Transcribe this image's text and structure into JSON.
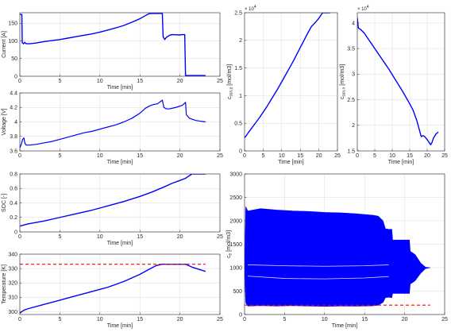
{
  "figure": {
    "background": "#ffffff",
    "line_color": "#0000ff",
    "ref_color": "#ff0000"
  },
  "chart_data": [
    {
      "id": "current",
      "type": "line",
      "xlabel": "Time [min]",
      "ylabel": "Current [A]",
      "xlim": [
        0,
        25
      ],
      "ylim": [
        0,
        180
      ],
      "xticks": [
        0,
        5,
        10,
        15,
        20,
        25
      ],
      "yticks": [
        0,
        50,
        100,
        150
      ],
      "grid": true,
      "series": [
        {
          "color": "#0000ff",
          "width": 1.4,
          "points": [
            [
              0,
              175
            ],
            [
              0.15,
              175
            ],
            [
              0.25,
              175
            ],
            [
              0.3,
              95
            ],
            [
              0.45,
              92
            ],
            [
              0.6,
              96
            ],
            [
              0.8,
              92
            ],
            [
              1.2,
              92
            ],
            [
              2,
              94
            ],
            [
              3,
              98
            ],
            [
              4,
              101
            ],
            [
              5,
              104
            ],
            [
              6,
              108
            ],
            [
              7,
              112
            ],
            [
              8,
              116
            ],
            [
              9,
              120
            ],
            [
              10,
              125
            ],
            [
              11,
              131
            ],
            [
              12,
              137
            ],
            [
              13,
              144
            ],
            [
              14,
              153
            ],
            [
              15,
              163
            ],
            [
              15.7,
              172
            ],
            [
              16.1,
              177
            ],
            [
              16.5,
              178
            ],
            [
              17.6,
              178
            ],
            [
              17.8,
              178
            ],
            [
              17.9,
              112
            ],
            [
              18.1,
              104
            ],
            [
              18.3,
              110
            ],
            [
              18.7,
              116
            ],
            [
              19,
              118
            ],
            [
              20,
              117
            ],
            [
              20.3,
              118
            ],
            [
              20.6,
              118
            ],
            [
              20.7,
              2
            ],
            [
              23.2,
              2
            ]
          ]
        }
      ]
    },
    {
      "id": "voltage",
      "type": "line",
      "xlabel": "Time [min]",
      "ylabel": "Voltage [V]",
      "xlim": [
        0,
        25
      ],
      "ylim": [
        3.6,
        4.4
      ],
      "xticks": [
        0,
        5,
        10,
        15,
        20,
        25
      ],
      "yticks": [
        3.6,
        3.8,
        4.0,
        4.2,
        4.4
      ],
      "grid": true,
      "series": [
        {
          "color": "#0000ff",
          "width": 1.2,
          "points": [
            [
              0,
              3.64
            ],
            [
              0.2,
              3.7
            ],
            [
              0.35,
              3.76
            ],
            [
              0.5,
              3.78
            ],
            [
              0.65,
              3.7
            ],
            [
              0.8,
              3.68
            ],
            [
              1.2,
              3.68
            ],
            [
              2,
              3.69
            ],
            [
              3,
              3.71
            ],
            [
              4,
              3.73
            ],
            [
              5,
              3.76
            ],
            [
              6,
              3.79
            ],
            [
              7,
              3.82
            ],
            [
              8,
              3.85
            ],
            [
              9,
              3.87
            ],
            [
              10,
              3.9
            ],
            [
              11,
              3.93
            ],
            [
              12,
              3.96
            ],
            [
              13,
              4.0
            ],
            [
              14,
              4.05
            ],
            [
              15,
              4.12
            ],
            [
              15.7,
              4.19
            ],
            [
              16.2,
              4.22
            ],
            [
              16.7,
              4.24
            ],
            [
              17.2,
              4.25
            ],
            [
              17.8,
              4.3
            ],
            [
              18.0,
              4.2
            ],
            [
              18.3,
              4.18
            ],
            [
              18.7,
              4.18
            ],
            [
              19.5,
              4.2
            ],
            [
              20.3,
              4.23
            ],
            [
              20.7,
              4.27
            ],
            [
              20.8,
              4.1
            ],
            [
              21.2,
              4.05
            ],
            [
              22,
              4.02
            ],
            [
              23.2,
              4.0
            ]
          ]
        }
      ]
    },
    {
      "id": "soc",
      "type": "line",
      "xlabel": "Time [min]",
      "ylabel": "SOC [-]",
      "xlim": [
        0,
        25
      ],
      "ylim": [
        0,
        0.8
      ],
      "xticks": [
        0,
        5,
        10,
        15,
        20,
        25
      ],
      "yticks": [
        0,
        0.2,
        0.4,
        0.6,
        0.8
      ],
      "grid": true,
      "series": [
        {
          "color": "#0000ff",
          "width": 1.4,
          "points": [
            [
              0,
              0.08
            ],
            [
              1,
              0.11
            ],
            [
              3,
              0.15
            ],
            [
              5,
              0.2
            ],
            [
              7,
              0.25
            ],
            [
              9,
              0.3
            ],
            [
              11,
              0.36
            ],
            [
              13,
              0.42
            ],
            [
              15,
              0.49
            ],
            [
              16.5,
              0.55
            ],
            [
              18,
              0.62
            ],
            [
              19,
              0.67
            ],
            [
              20,
              0.71
            ],
            [
              20.7,
              0.74
            ],
            [
              21.5,
              0.8
            ],
            [
              23.2,
              0.8
            ]
          ]
        }
      ]
    },
    {
      "id": "temperature",
      "type": "line",
      "xlabel": "Time [min]",
      "ylabel": "Temperature [K]",
      "xlim": [
        0,
        25
      ],
      "ylim": [
        298,
        340
      ],
      "xticks": [
        0,
        5,
        10,
        15,
        20,
        25
      ],
      "yticks": [
        300,
        310,
        320,
        330,
        340
      ],
      "grid": true,
      "series": [
        {
          "color": "#0000ff",
          "width": 1.4,
          "points": [
            [
              0,
              299
            ],
            [
              0.5,
              301
            ],
            [
              1,
              302
            ],
            [
              3,
              305
            ],
            [
              5,
              308
            ],
            [
              7,
              311
            ],
            [
              9,
              314
            ],
            [
              11,
              317
            ],
            [
              13,
              321
            ],
            [
              15,
              326
            ],
            [
              16,
              329
            ],
            [
              17,
              332
            ],
            [
              17.8,
              333
            ],
            [
              18.5,
              333
            ],
            [
              20.3,
              333
            ],
            [
              20.7,
              333
            ],
            [
              21.5,
              331
            ],
            [
              23.2,
              328
            ]
          ]
        },
        {
          "color": "#ff0000",
          "width": 1.2,
          "dash": "4 3",
          "points": [
            [
              0,
              333
            ],
            [
              23.2,
              333
            ]
          ]
        }
      ]
    },
    {
      "id": "c_s_surf_pos",
      "type": "line",
      "xlabel": "Time [min]",
      "ylabel_main": "c",
      "ylabel_sub": "ssn,p",
      "ylabel_unit": " [mol/m3]",
      "exponent_label": "× 10",
      "exponent_power": "4",
      "xlim": [
        0,
        25
      ],
      "ylim": [
        0,
        25000
      ],
      "xticks": [
        0,
        5,
        10,
        15,
        20,
        25
      ],
      "yticks": [
        0,
        5000,
        10000,
        15000,
        20000,
        25000
      ],
      "ytick_labels": [
        "0",
        "0.5",
        "1",
        "1.5",
        "2",
        "2.5"
      ],
      "grid": true,
      "series": [
        {
          "color": "#0000ff",
          "width": 1.4,
          "points": [
            [
              0,
              2400
            ],
            [
              0.3,
              2600
            ],
            [
              1,
              3300
            ],
            [
              2,
              4200
            ],
            [
              3,
              5100
            ],
            [
              4,
              6000
            ],
            [
              5,
              7000
            ],
            [
              6,
              8000
            ],
            [
              7,
              9100
            ],
            [
              8,
              10200
            ],
            [
              9,
              11300
            ],
            [
              10,
              12500
            ],
            [
              11,
              13700
            ],
            [
              12,
              14900
            ],
            [
              13,
              16100
            ],
            [
              14,
              17400
            ],
            [
              15,
              18700
            ],
            [
              16,
              20000
            ],
            [
              17,
              21300
            ],
            [
              18,
              22500
            ],
            [
              19,
              23200
            ],
            [
              20,
              24000
            ],
            [
              21,
              25000
            ],
            [
              22,
              25000
            ],
            [
              23,
              25000
            ]
          ]
        }
      ]
    },
    {
      "id": "c_s_surf_neg",
      "type": "line",
      "xlabel": "Time [min]",
      "ylabel_main": "c",
      "ylabel_sub": "ssn,n",
      "ylabel_unit": " [mol/m3]",
      "exponent_label": "× 10",
      "exponent_power": "4",
      "xlim": [
        0,
        25
      ],
      "ylim": [
        15000,
        42000
      ],
      "xticks": [
        0,
        5,
        10,
        15,
        20,
        25
      ],
      "yticks": [
        15000,
        20000,
        25000,
        30000,
        35000,
        40000
      ],
      "ytick_labels": [
        "1.5",
        "2",
        "2.5",
        "3",
        "3.5",
        "4"
      ],
      "grid": true,
      "series": [
        {
          "color": "#0000ff",
          "width": 1.4,
          "points": [
            [
              0,
              41000
            ],
            [
              0.15,
              40000
            ],
            [
              0.3,
              39000
            ],
            [
              1,
              38700
            ],
            [
              2,
              38000
            ],
            [
              3,
              37000
            ],
            [
              4,
              36000
            ],
            [
              5,
              35000
            ],
            [
              6,
              34000
            ],
            [
              7,
              33000
            ],
            [
              8,
              32000
            ],
            [
              9,
              31000
            ],
            [
              10,
              29900
            ],
            [
              11,
              28800
            ],
            [
              12,
              27700
            ],
            [
              13,
              26600
            ],
            [
              14,
              25400
            ],
            [
              15,
              24200
            ],
            [
              16,
              22900
            ],
            [
              17,
              21000
            ],
            [
              17.8,
              19000
            ],
            [
              18.3,
              17800
            ],
            [
              18.8,
              18000
            ],
            [
              19.3,
              17800
            ],
            [
              20.2,
              17000
            ],
            [
              20.7,
              16500
            ],
            [
              21,
              16200
            ],
            [
              21.4,
              16700
            ],
            [
              21.8,
              17500
            ],
            [
              22.5,
              18300
            ],
            [
              23.2,
              18700
            ]
          ]
        }
      ]
    },
    {
      "id": "c_e",
      "type": "area",
      "xlabel": "Time [min]",
      "ylabel_main": "c",
      "ylabel_sub": "e",
      "ylabel_unit": " [mol/m3]",
      "xlim": [
        0,
        25
      ],
      "ylim": [
        0,
        3000
      ],
      "xticks": [
        0,
        5,
        10,
        15,
        20,
        25
      ],
      "yticks": [
        0,
        500,
        1000,
        1500,
        2000,
        2500,
        3000
      ],
      "grid": true,
      "envelope_upper": [
        [
          0,
          1000
        ],
        [
          0.15,
          2300
        ],
        [
          0.4,
          2210
        ],
        [
          2,
          2260
        ],
        [
          4,
          2230
        ],
        [
          6,
          2210
        ],
        [
          8,
          2200
        ],
        [
          10,
          2180
        ],
        [
          12,
          2170
        ],
        [
          14,
          2150
        ],
        [
          16,
          2120
        ],
        [
          16.7,
          2100
        ],
        [
          17.3,
          2000
        ],
        [
          17.6,
          1830
        ],
        [
          18.0,
          1820
        ],
        [
          18.4,
          1820
        ],
        [
          18.5,
          1590
        ],
        [
          20.6,
          1590
        ],
        [
          20.7,
          1350
        ],
        [
          21.3,
          1280
        ],
        [
          22,
          1100
        ],
        [
          22.6,
          1010
        ],
        [
          23.2,
          1000
        ]
      ],
      "envelope_lower": [
        [
          0,
          1000
        ],
        [
          0.15,
          250
        ],
        [
          0.4,
          180
        ],
        [
          2,
          190
        ],
        [
          4,
          180
        ],
        [
          6,
          190
        ],
        [
          8,
          180
        ],
        [
          10,
          175
        ],
        [
          12,
          180
        ],
        [
          14,
          178
        ],
        [
          16,
          185
        ],
        [
          16.7,
          200
        ],
        [
          17.3,
          260
        ],
        [
          17.6,
          360
        ],
        [
          18.0,
          370
        ],
        [
          18.4,
          360
        ],
        [
          18.5,
          450
        ],
        [
          20.6,
          450
        ],
        [
          20.7,
          650
        ],
        [
          21.3,
          720
        ],
        [
          22,
          880
        ],
        [
          22.6,
          980
        ],
        [
          23.2,
          1000
        ]
      ],
      "inner_lines": [
        [
          [
            0.4,
            1060
          ],
          [
            5,
            1040
          ],
          [
            10,
            1030
          ],
          [
            15,
            1040
          ],
          [
            18,
            1060
          ]
        ],
        [
          [
            0.4,
            820
          ],
          [
            5,
            770
          ],
          [
            10,
            760
          ],
          [
            15,
            780
          ],
          [
            18,
            810
          ]
        ]
      ],
      "series": [
        {
          "color": "#ff0000",
          "width": 1.2,
          "dash": "4 3",
          "points": [
            [
              0,
              200
            ],
            [
              23.2,
              200
            ]
          ]
        }
      ]
    }
  ]
}
